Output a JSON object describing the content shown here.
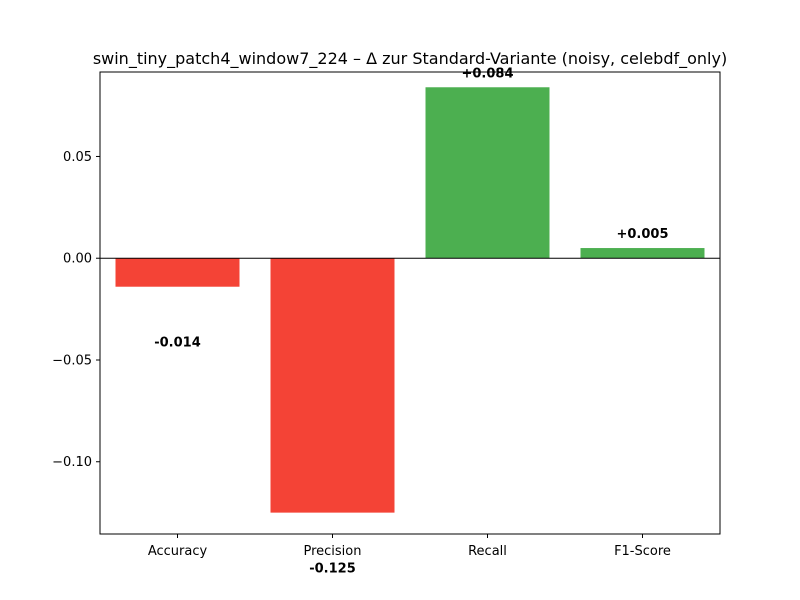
{
  "chart_data": {
    "type": "bar",
    "title": "swin_tiny_patch4_window7_224 – Δ zur Standard-Variante (noisy, celebdf_only)",
    "xlabel": "",
    "ylabel": "",
    "categories": [
      "Accuracy",
      "Precision",
      "Recall",
      "F1-Score"
    ],
    "values": [
      -0.014,
      -0.125,
      0.084,
      0.005
    ],
    "data_labels": [
      "-0.014",
      "-0.125",
      "+0.084",
      "+0.005"
    ],
    "ylim": [
      -0.1355,
      0.0915
    ],
    "yticks": [
      -0.1,
      -0.05,
      0.0,
      0.05
    ],
    "ytick_labels": [
      "−0.10",
      "−0.05",
      "0.00",
      "0.05"
    ],
    "colors": {
      "positive": "#4caf50",
      "negative": "#f44336",
      "zero_line": "#000000"
    },
    "grid": false,
    "legend": "none"
  }
}
